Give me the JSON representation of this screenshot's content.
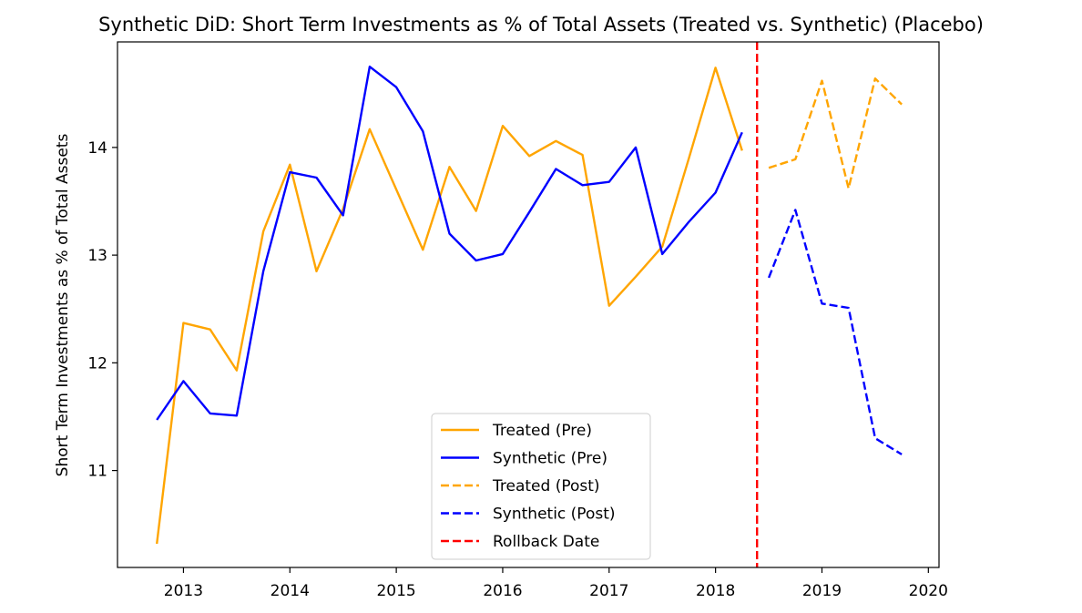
{
  "chart_data": {
    "type": "line",
    "title": "Synthetic DiD: Short Term Investments as % of Total Assets (Treated vs. Synthetic) (Placebo)",
    "xlabel": "",
    "ylabel": "Short Term Investments as % of Total Assets",
    "xlim": [
      2012.38,
      2020.1
    ],
    "ylim": [
      10.1,
      14.98
    ],
    "x_ticks": [
      2013,
      2014,
      2015,
      2016,
      2017,
      2018,
      2019,
      2020
    ],
    "y_ticks": [
      11,
      12,
      13,
      14
    ],
    "series": [
      {
        "name": "Treated (Pre)",
        "color": "#ffa500",
        "style": "solid",
        "x": [
          2012.75,
          2013.0,
          2013.25,
          2013.5,
          2013.75,
          2014.0,
          2014.25,
          2014.5,
          2014.75,
          2015.0,
          2015.25,
          2015.5,
          2015.75,
          2016.0,
          2016.25,
          2016.5,
          2016.75,
          2017.0,
          2017.25,
          2017.5,
          2017.75,
          2018.0,
          2018.25
        ],
        "y": [
          10.32,
          12.37,
          12.31,
          11.93,
          13.22,
          13.84,
          12.85,
          13.43,
          14.17,
          13.61,
          13.05,
          13.82,
          13.41,
          14.2,
          13.92,
          14.06,
          13.93,
          12.53,
          12.8,
          13.08,
          13.9,
          14.74,
          13.97
        ]
      },
      {
        "name": "Synthetic (Pre)",
        "color": "#0000ff",
        "style": "solid",
        "x": [
          2012.75,
          2013.0,
          2013.25,
          2013.5,
          2013.75,
          2014.0,
          2014.25,
          2014.5,
          2014.75,
          2015.0,
          2015.25,
          2015.5,
          2015.75,
          2016.0,
          2016.25,
          2016.5,
          2016.75,
          2017.0,
          2017.25,
          2017.5,
          2017.75,
          2018.0,
          2018.25
        ],
        "y": [
          11.47,
          11.83,
          11.53,
          11.51,
          12.85,
          13.77,
          13.72,
          13.37,
          14.75,
          14.56,
          14.15,
          13.2,
          12.95,
          13.01,
          13.4,
          13.8,
          13.65,
          13.68,
          14.0,
          13.01,
          13.31,
          13.58,
          14.14
        ]
      },
      {
        "name": "Treated (Post)",
        "color": "#ffa500",
        "style": "dashed",
        "x": [
          2018.5,
          2018.75,
          2019.0,
          2019.25,
          2019.5,
          2019.75
        ],
        "y": [
          13.81,
          13.89,
          14.62,
          13.62,
          14.64,
          14.4
        ]
      },
      {
        "name": "Synthetic (Post)",
        "color": "#0000ff",
        "style": "dashed",
        "x": [
          2018.5,
          2018.75,
          2019.0,
          2019.25,
          2019.5,
          2019.75
        ],
        "y": [
          12.79,
          13.42,
          12.55,
          12.51,
          11.3,
          11.15
        ]
      }
    ],
    "vline": {
      "name": "Rollback Date",
      "x": 2018.39,
      "color": "#ff0000",
      "style": "dashed"
    },
    "legend": {
      "placement": "lower-center",
      "entries": [
        {
          "label": "Treated (Pre)",
          "color": "#ffa500",
          "style": "solid"
        },
        {
          "label": "Synthetic (Pre)",
          "color": "#0000ff",
          "style": "solid"
        },
        {
          "label": "Treated (Post)",
          "color": "#ffa500",
          "style": "dashed"
        },
        {
          "label": "Synthetic (Post)",
          "color": "#0000ff",
          "style": "dashed"
        },
        {
          "label": "Rollback Date",
          "color": "#ff0000",
          "style": "dashed"
        }
      ]
    },
    "grid": false
  }
}
